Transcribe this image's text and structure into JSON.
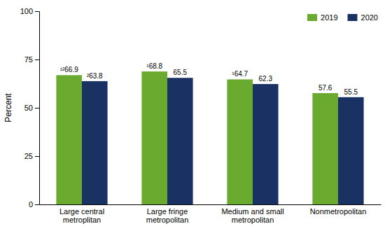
{
  "chart_data": {
    "type": "bar",
    "categories": [
      "Large central\nmetroplitan",
      "Large fringe\nmetropolitan",
      "Medium and small\nmetropolitan",
      "Nonmetropolitan"
    ],
    "series": [
      {
        "name": "2019",
        "color": "#6aaa2e",
        "values": [
          66.9,
          68.8,
          64.7,
          57.6
        ],
        "value_labels": [
          "¹²66.9",
          "¹68.8",
          "¹64.7",
          "57.6"
        ]
      },
      {
        "name": "2020",
        "color": "#1a3263",
        "values": [
          63.8,
          65.5,
          62.3,
          55.5
        ],
        "value_labels": [
          "²63.8",
          "65.5",
          "62.3",
          "55.5"
        ]
      }
    ],
    "y_label": "Percent",
    "ylim": [
      0,
      100
    ],
    "yticks": [
      0,
      25,
      50,
      75,
      100
    ],
    "grid": false,
    "legend": "upper right",
    "data_labels": true
  }
}
